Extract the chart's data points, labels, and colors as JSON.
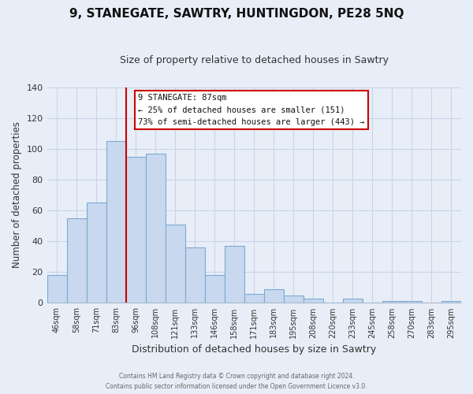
{
  "title": "9, STANEGATE, SAWTRY, HUNTINGDON, PE28 5NQ",
  "subtitle": "Size of property relative to detached houses in Sawtry",
  "xlabel": "Distribution of detached houses by size in Sawtry",
  "ylabel": "Number of detached properties",
  "bar_color": "#c8d8ee",
  "bar_edge_color": "#7baad4",
  "vline_color": "#cc0000",
  "vline_position": 3.5,
  "categories": [
    "46sqm",
    "58sqm",
    "71sqm",
    "83sqm",
    "96sqm",
    "108sqm",
    "121sqm",
    "133sqm",
    "146sqm",
    "158sqm",
    "171sqm",
    "183sqm",
    "195sqm",
    "208sqm",
    "220sqm",
    "233sqm",
    "245sqm",
    "258sqm",
    "270sqm",
    "283sqm",
    "295sqm"
  ],
  "values": [
    18,
    55,
    65,
    105,
    95,
    97,
    51,
    36,
    18,
    37,
    6,
    9,
    5,
    3,
    0,
    3,
    0,
    1,
    1,
    0,
    1
  ],
  "ylim": [
    0,
    140
  ],
  "yticks": [
    0,
    20,
    40,
    60,
    80,
    100,
    120,
    140
  ],
  "annotation_title": "9 STANEGATE: 87sqm",
  "annotation_line1": "← 25% of detached houses are smaller (151)",
  "annotation_line2": "73% of semi-detached houses are larger (443) →",
  "footer_line1": "Contains HM Land Registry data © Crown copyright and database right 2024.",
  "footer_line2": "Contains public sector information licensed under the Open Government Licence v3.0.",
  "background_color": "#e8eef8",
  "grid_color": "#c8d4e8"
}
